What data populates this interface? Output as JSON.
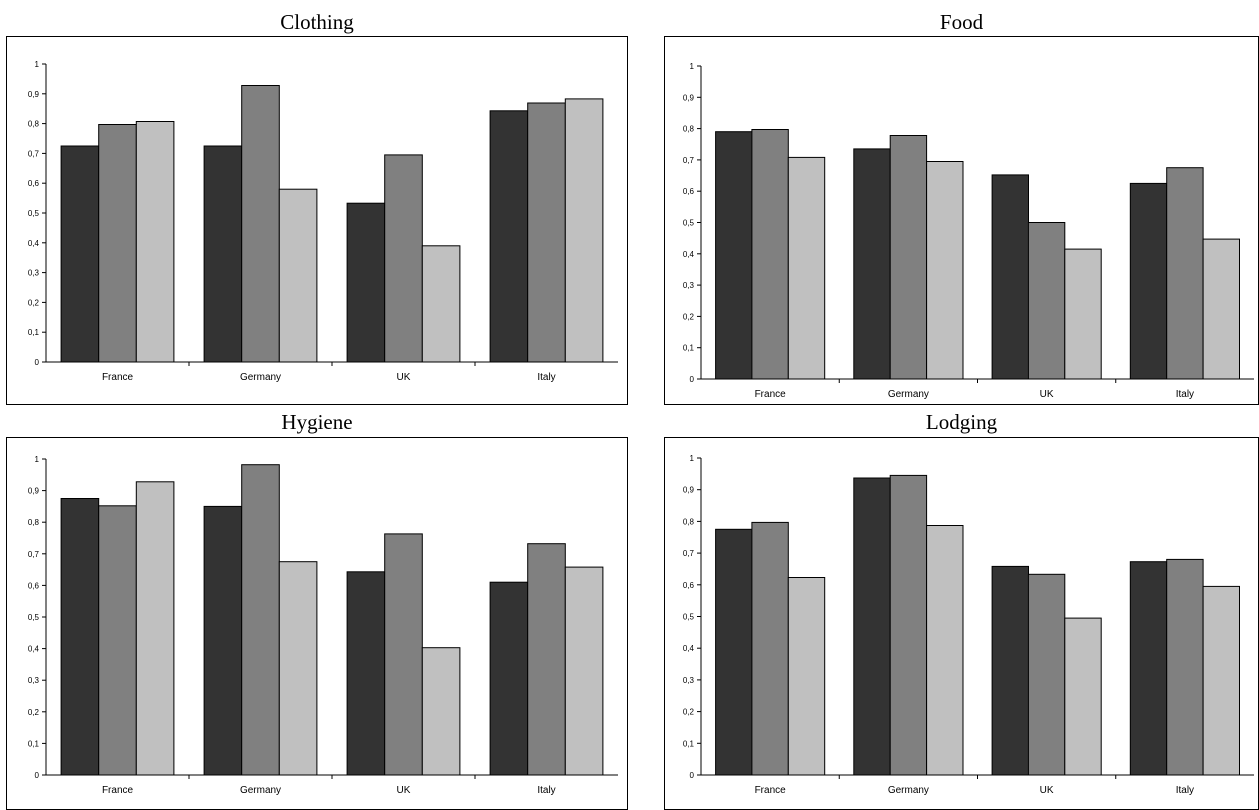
{
  "chart_data": [
    {
      "type": "bar",
      "title": "Clothing",
      "categories": [
        "France",
        "Germany",
        "UK",
        "Italy"
      ],
      "series": [
        {
          "values": [
            0.725,
            0.725,
            0.533,
            0.843
          ]
        },
        {
          "values": [
            0.797,
            0.928,
            0.695,
            0.869
          ]
        },
        {
          "values": [
            0.807,
            0.58,
            0.39,
            0.883
          ]
        }
      ],
      "ylim": [
        0,
        1
      ],
      "yticks": [
        "0",
        "0,1",
        "0,2",
        "0,3",
        "0,4",
        "0,5",
        "0,6",
        "0,7",
        "0,8",
        "0,9",
        "1"
      ],
      "grid": false,
      "colors": [
        "#333333",
        "#808080",
        "#c0c0c0"
      ]
    },
    {
      "type": "bar",
      "title": "Food",
      "categories": [
        "France",
        "Germany",
        "UK",
        "Italy"
      ],
      "series": [
        {
          "values": [
            0.79,
            0.735,
            0.652,
            0.625
          ]
        },
        {
          "values": [
            0.797,
            0.778,
            0.5,
            0.675
          ]
        },
        {
          "values": [
            0.708,
            0.695,
            0.415,
            0.447
          ]
        }
      ],
      "ylim": [
        0,
        1
      ],
      "yticks": [
        "0",
        "0,1",
        "0,2",
        "0,3",
        "0,4",
        "0,5",
        "0,6",
        "0,7",
        "0,8",
        "0,9",
        "1"
      ],
      "grid": false,
      "colors": [
        "#333333",
        "#808080",
        "#c0c0c0"
      ]
    },
    {
      "type": "bar",
      "title": "Hygiene",
      "categories": [
        "France",
        "Germany",
        "UK",
        "Italy"
      ],
      "series": [
        {
          "values": [
            0.875,
            0.85,
            0.643,
            0.61
          ]
        },
        {
          "values": [
            0.852,
            0.982,
            0.763,
            0.732
          ]
        },
        {
          "values": [
            0.928,
            0.675,
            0.403,
            0.658
          ]
        }
      ],
      "ylim": [
        0,
        1
      ],
      "yticks": [
        "0",
        "0,1",
        "0,2",
        "0,3",
        "0,4",
        "0,5",
        "0,6",
        "0,7",
        "0,8",
        "0,9",
        "1"
      ],
      "grid": false,
      "colors": [
        "#333333",
        "#808080",
        "#c0c0c0"
      ]
    },
    {
      "type": "bar",
      "title": "Lodging",
      "categories": [
        "France",
        "Germany",
        "UK",
        "Italy"
      ],
      "series": [
        {
          "values": [
            0.775,
            0.937,
            0.658,
            0.673
          ]
        },
        {
          "values": [
            0.797,
            0.945,
            0.633,
            0.68
          ]
        },
        {
          "values": [
            0.623,
            0.787,
            0.495,
            0.595
          ]
        }
      ],
      "ylim": [
        0,
        1
      ],
      "yticks": [
        "0",
        "0,1",
        "0,2",
        "0,3",
        "0,4",
        "0,5",
        "0,6",
        "0,7",
        "0,8",
        "0,9",
        "1"
      ],
      "grid": false,
      "colors": [
        "#333333",
        "#808080",
        "#c0c0c0"
      ]
    }
  ]
}
